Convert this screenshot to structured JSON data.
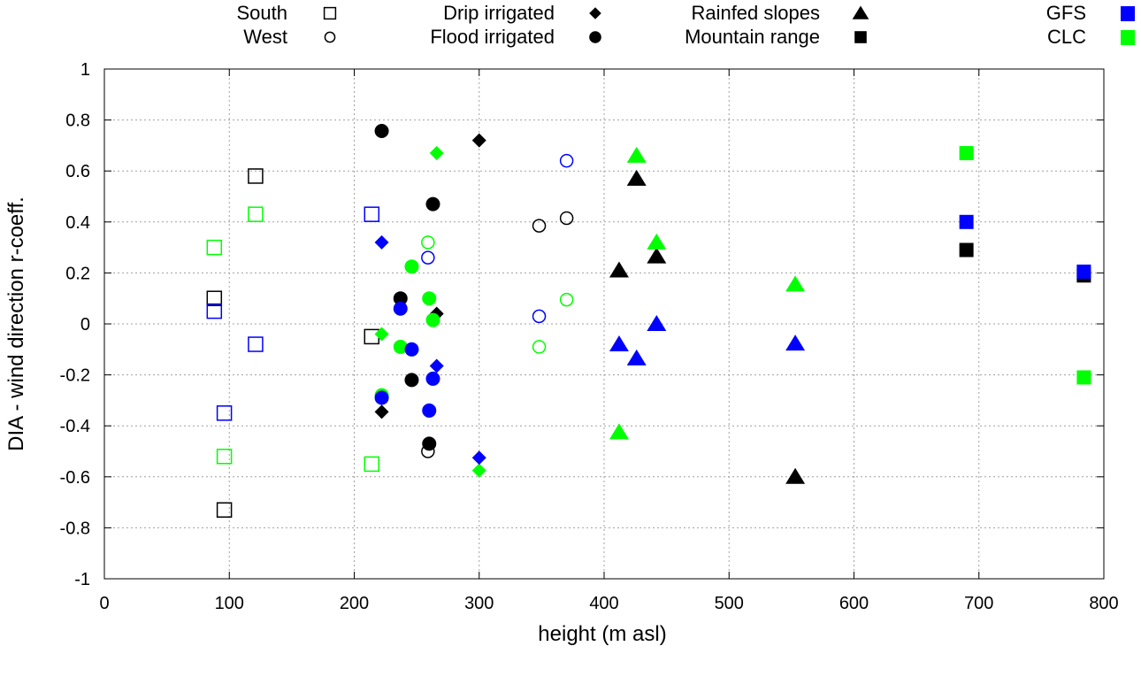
{
  "chart_data": {
    "type": "scatter",
    "title": "",
    "xlabel": "height (m asl)",
    "ylabel": "DIA - wind direction r-coeff.",
    "xlim": [
      0,
      800
    ],
    "ylim": [
      -1,
      1
    ],
    "xticks": [
      "0",
      "100",
      "200",
      "300",
      "400",
      "500",
      "600",
      "700",
      "800"
    ],
    "xtick_values": [
      0,
      100,
      200,
      300,
      400,
      500,
      600,
      700,
      800
    ],
    "yticks": [
      "1",
      "0.8",
      "0.6",
      "0.4",
      "0.2",
      "0",
      "-0.2",
      "-0.4",
      "-0.6",
      "-0.8",
      "-1"
    ],
    "ytick_values": [
      1,
      0.8,
      0.6,
      0.4,
      0.2,
      0,
      -0.2,
      -0.4,
      -0.6,
      -0.8,
      -1
    ],
    "grid": true,
    "legend_regions": [
      {
        "label": "South",
        "marker": "open-square"
      },
      {
        "label": "West",
        "marker": "open-circle"
      },
      {
        "label": "Drip irrigated",
        "marker": "diamond"
      },
      {
        "label": "Flood irrigated",
        "marker": "circle"
      },
      {
        "label": "Rainfed slopes",
        "marker": "triangle"
      },
      {
        "label": "Mountain range",
        "marker": "square"
      }
    ],
    "legend_sources": [
      {
        "label": "GFS",
        "color": "#0000ff"
      },
      {
        "label": "CLC",
        "color": "#00ff00"
      }
    ],
    "default_color": "#000000",
    "series": [
      {
        "name": "South",
        "marker": "open-square",
        "source": "obs",
        "points": [
          [
            121,
            0.58
          ],
          [
            88,
            0.1
          ],
          [
            96,
            -0.73
          ],
          [
            214,
            -0.05
          ]
        ]
      },
      {
        "name": "South",
        "marker": "open-square",
        "source": "CLC",
        "points": [
          [
            121,
            0.43
          ],
          [
            88,
            0.3
          ],
          [
            96,
            -0.52
          ],
          [
            214,
            -0.55
          ]
        ]
      },
      {
        "name": "South",
        "marker": "open-square",
        "source": "GFS",
        "points": [
          [
            214,
            0.43
          ],
          [
            88,
            0.05
          ],
          [
            121,
            -0.08
          ],
          [
            96,
            -0.35
          ]
        ]
      },
      {
        "name": "West",
        "marker": "open-circle",
        "source": "obs",
        "points": [
          [
            348,
            0.385
          ],
          [
            370,
            0.415
          ],
          [
            259,
            -0.5
          ]
        ]
      },
      {
        "name": "West",
        "marker": "open-circle",
        "source": "GFS",
        "points": [
          [
            370,
            0.64
          ],
          [
            259,
            0.26
          ],
          [
            348,
            0.03
          ]
        ]
      },
      {
        "name": "West",
        "marker": "open-circle",
        "source": "CLC",
        "points": [
          [
            259,
            0.32
          ],
          [
            370,
            0.095
          ],
          [
            348,
            -0.09
          ]
        ]
      },
      {
        "name": "Drip irrigated",
        "marker": "diamond",
        "source": "obs",
        "points": [
          [
            300,
            0.72
          ],
          [
            266,
            0.04
          ],
          [
            222,
            -0.345
          ]
        ]
      },
      {
        "name": "Drip irrigated",
        "marker": "diamond",
        "source": "CLC",
        "points": [
          [
            266,
            0.67
          ],
          [
            222,
            -0.04
          ],
          [
            300,
            -0.575
          ]
        ]
      },
      {
        "name": "Drip irrigated",
        "marker": "diamond",
        "source": "GFS",
        "points": [
          [
            222,
            0.32
          ],
          [
            266,
            -0.165
          ],
          [
            300,
            -0.525
          ]
        ]
      },
      {
        "name": "Flood irrigated",
        "marker": "circle",
        "source": "obs",
        "points": [
          [
            222,
            0.757
          ],
          [
            263,
            0.47
          ],
          [
            237,
            0.1
          ],
          [
            246,
            -0.22
          ],
          [
            260,
            -0.47
          ]
        ]
      },
      {
        "name": "Flood irrigated",
        "marker": "circle",
        "source": "CLC",
        "points": [
          [
            246,
            0.225
          ],
          [
            260,
            0.1
          ],
          [
            263,
            0.015
          ],
          [
            237,
            -0.09
          ],
          [
            222,
            -0.28
          ]
        ]
      },
      {
        "name": "Flood irrigated",
        "marker": "circle",
        "source": "GFS",
        "points": [
          [
            237,
            0.06
          ],
          [
            246,
            -0.1
          ],
          [
            263,
            -0.215
          ],
          [
            260,
            -0.34
          ],
          [
            222,
            -0.29
          ]
        ]
      },
      {
        "name": "Rainfed slopes",
        "marker": "triangle",
        "source": "obs",
        "points": [
          [
            426,
            0.57
          ],
          [
            412,
            0.21
          ],
          [
            442,
            0.265
          ],
          [
            553,
            -0.6
          ]
        ]
      },
      {
        "name": "Rainfed slopes",
        "marker": "triangle",
        "source": "CLC",
        "points": [
          [
            426,
            0.66
          ],
          [
            442,
            0.32
          ],
          [
            553,
            0.155
          ],
          [
            412,
            -0.425
          ]
        ]
      },
      {
        "name": "Rainfed slopes",
        "marker": "triangle",
        "source": "GFS",
        "points": [
          [
            442,
            0.0
          ],
          [
            412,
            -0.08
          ],
          [
            426,
            -0.135
          ],
          [
            553,
            -0.077
          ]
        ]
      },
      {
        "name": "Mountain range",
        "marker": "square",
        "source": "obs",
        "points": [
          [
            690,
            0.29
          ],
          [
            784,
            0.19
          ]
        ]
      },
      {
        "name": "Mountain range",
        "marker": "square",
        "source": "CLC",
        "points": [
          [
            690,
            0.67
          ],
          [
            784,
            -0.21
          ]
        ]
      },
      {
        "name": "Mountain range",
        "marker": "square",
        "source": "GFS",
        "points": [
          [
            690,
            0.4
          ],
          [
            784,
            0.205
          ]
        ]
      }
    ]
  }
}
